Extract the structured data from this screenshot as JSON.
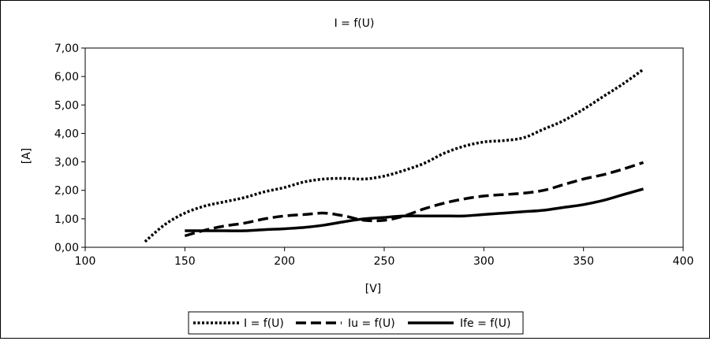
{
  "chart_data": {
    "type": "line",
    "title": "I = f(U)",
    "xlabel": "[V]",
    "ylabel": "[A]",
    "xlim": [
      100,
      400
    ],
    "ylim": [
      0,
      7
    ],
    "x_ticks": [
      100,
      150,
      200,
      250,
      300,
      350,
      400
    ],
    "x_tick_labels": [
      "100",
      "150",
      "200",
      "250",
      "300",
      "350",
      "400"
    ],
    "y_ticks": [
      0,
      1,
      2,
      3,
      4,
      5,
      6,
      7
    ],
    "y_tick_labels": [
      "0,00",
      "1,00",
      "2,00",
      "3,00",
      "4,00",
      "5,00",
      "6,00",
      "7,00"
    ],
    "grid": false,
    "legend_position": "bottom",
    "series": [
      {
        "name": "I = f(U)",
        "style": "dotted",
        "x": [
          130,
          140,
          150,
          160,
          170,
          180,
          190,
          200,
          210,
          220,
          230,
          240,
          250,
          260,
          270,
          280,
          290,
          300,
          310,
          320,
          330,
          340,
          350,
          360,
          370,
          380
        ],
        "y": [
          0.2,
          0.8,
          1.2,
          1.45,
          1.6,
          1.75,
          1.95,
          2.1,
          2.3,
          2.4,
          2.42,
          2.4,
          2.5,
          2.7,
          2.95,
          3.3,
          3.55,
          3.7,
          3.75,
          3.85,
          4.15,
          4.45,
          4.85,
          5.3,
          5.75,
          6.25
        ]
      },
      {
        "name": "Iu = f(U)",
        "style": "dashed",
        "x": [
          150,
          160,
          170,
          180,
          190,
          200,
          210,
          220,
          230,
          240,
          250,
          260,
          270,
          280,
          290,
          300,
          310,
          320,
          330,
          340,
          350,
          360,
          370,
          380
        ],
        "y": [
          0.4,
          0.6,
          0.75,
          0.85,
          1.0,
          1.1,
          1.15,
          1.2,
          1.1,
          0.95,
          0.95,
          1.1,
          1.35,
          1.55,
          1.7,
          1.8,
          1.85,
          1.9,
          2.0,
          2.2,
          2.4,
          2.55,
          2.75,
          2.98
        ]
      },
      {
        "name": "Ife = f(U)",
        "style": "solid",
        "x": [
          150,
          160,
          170,
          180,
          190,
          200,
          210,
          220,
          230,
          240,
          250,
          260,
          270,
          280,
          290,
          300,
          310,
          320,
          330,
          340,
          350,
          360,
          370,
          380
        ],
        "y": [
          0.58,
          0.58,
          0.58,
          0.58,
          0.62,
          0.65,
          0.7,
          0.78,
          0.9,
          1.0,
          1.05,
          1.1,
          1.1,
          1.1,
          1.1,
          1.15,
          1.2,
          1.25,
          1.3,
          1.4,
          1.5,
          1.65,
          1.85,
          2.05
        ]
      }
    ]
  }
}
